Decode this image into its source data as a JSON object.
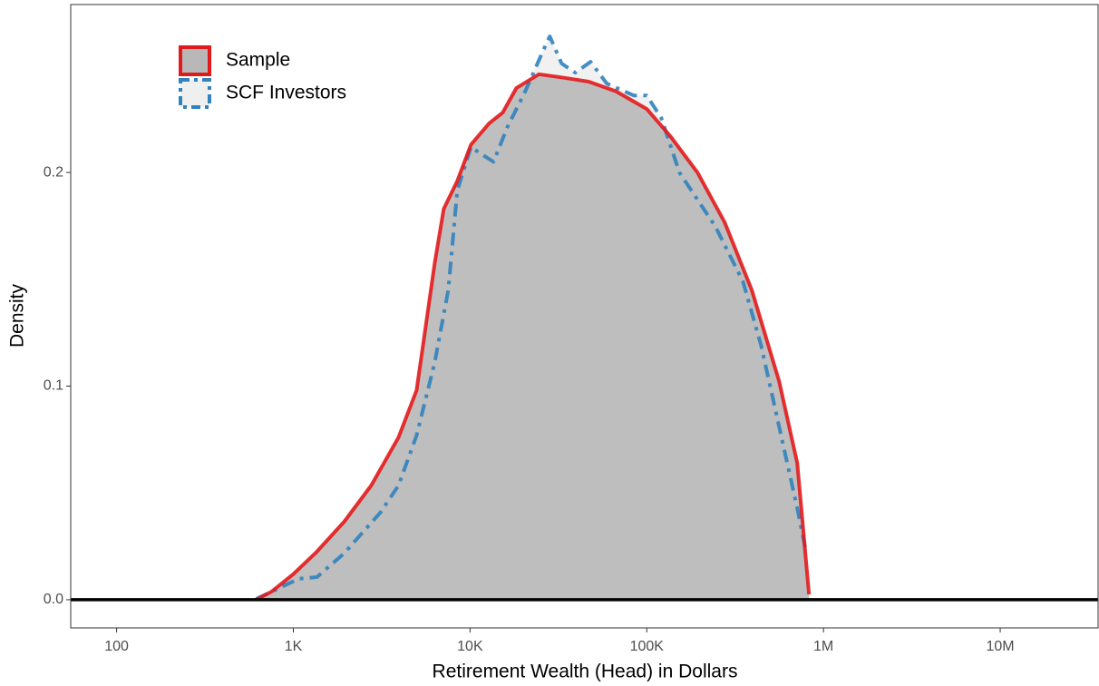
{
  "chart_data": {
    "type": "density",
    "x_label": "Retirement Wealth (Head) in Dollars",
    "y_label": "Density",
    "xlog": true,
    "xlim": [
      55,
      35800000
    ],
    "ylim": [
      -0.0132,
      0.2786
    ],
    "xticks": [
      100,
      {
        "value": 1000,
        "label": "1K"
      },
      {
        "value": 10000,
        "label": "10K"
      },
      {
        "value": 100000,
        "label": "100K"
      },
      {
        "value": 1000000,
        "label": "1M"
      },
      {
        "value": 10000000,
        "label": "10M"
      }
    ],
    "yticks": [
      {
        "value": 0,
        "label": "0.0"
      },
      0.1,
      0.2
    ],
    "hline": 0,
    "legend": "top-left",
    "series": [
      {
        "name": "SCF Investors",
        "color": "#3182bd",
        "fill": "#efefef",
        "linestyle": "dashdot",
        "x": [
          617,
          1074,
          1360,
          1937,
          3105,
          3936,
          4980,
          6310,
          7530,
          8470,
          10120,
          11380,
          13580,
          16220,
          20540,
          26000,
          28250,
          32970,
          39360,
          48080,
          59430,
          84700,
          100000,
          120800,
          153000,
          193700,
          245300,
          276000,
          349800,
          442700,
          561000,
          710000,
          800000
        ],
        "values": [
          0.0004,
          0.0098,
          0.0106,
          0.0217,
          0.0408,
          0.0535,
          0.0769,
          0.111,
          0.145,
          0.1915,
          0.212,
          0.209,
          0.205,
          0.221,
          0.238,
          0.2573,
          0.2637,
          0.251,
          0.2467,
          0.2518,
          0.2416,
          0.236,
          0.236,
          0.2255,
          0.2,
          0.1873,
          0.1745,
          0.166,
          0.149,
          0.1193,
          0.0811,
          0.0429,
          0.0217
        ]
      },
      {
        "name": "Sample",
        "color": "#e31a1c",
        "fill": "#b8b8b8",
        "linestyle": "solid",
        "x": [
          617,
          753,
          1000,
          1360,
          1937,
          2760,
          3936,
          4980,
          5610,
          6310,
          7100,
          8470,
          10120,
          12820,
          15300,
          18270,
          24550,
          32970,
          46970,
          66950,
          100000,
          135900,
          193700,
          276000,
          393600,
          561000,
          710000,
          828000
        ],
        "values": [
          0,
          0.0038,
          0.012,
          0.0225,
          0.0365,
          0.0535,
          0.076,
          0.098,
          0.128,
          0.1575,
          0.183,
          0.196,
          0.213,
          0.223,
          0.228,
          0.2395,
          0.246,
          0.2445,
          0.2425,
          0.238,
          0.2297,
          0.217,
          0.2,
          0.1766,
          0.1448,
          0.1023,
          0.064,
          0.0025
        ]
      }
    ]
  }
}
